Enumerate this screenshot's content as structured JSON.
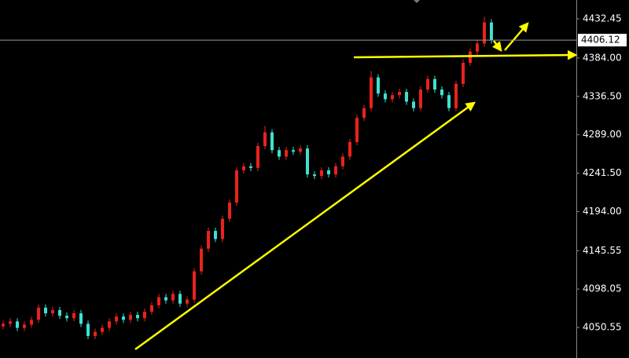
{
  "chart_data": {
    "type": "candlestick",
    "open": [
      4052,
      4055,
      4058,
      4050,
      4054,
      4060,
      4075,
      4068,
      4072,
      4065,
      4062,
      4068,
      4055,
      4040,
      4045,
      4050,
      4058,
      4064,
      4060,
      4066,
      4062,
      4070,
      4078,
      4088,
      4084,
      4092,
      4080,
      4085,
      4120,
      4148,
      4170,
      4160,
      4185,
      4205,
      4245,
      4250,
      4248,
      4275,
      4292,
      4270,
      4262,
      4270,
      4268,
      4272,
      4240,
      4238,
      4245,
      4240,
      4250,
      4262,
      4280,
      4310,
      4322,
      4360,
      4340,
      4333,
      4338,
      4342,
      4330,
      4322,
      4345,
      4358,
      4345,
      4338,
      4322,
      4352,
      4378,
      4392,
      4402,
      4428
    ],
    "high": [
      4059,
      4062,
      4062,
      4058,
      4064,
      4079,
      4079,
      4076,
      4076,
      4069,
      4072,
      4072,
      4059,
      4049,
      4054,
      4062,
      4068,
      4068,
      4070,
      4070,
      4074,
      4082,
      4092,
      4092,
      4096,
      4096,
      4089,
      4124,
      4152,
      4174,
      4174,
      4189,
      4209,
      4249,
      4254,
      4254,
      4279,
      4300,
      4296,
      4274,
      4274,
      4274,
      4276,
      4276,
      4244,
      4249,
      4249,
      4254,
      4266,
      4284,
      4314,
      4326,
      4368,
      4364,
      4344,
      4342,
      4346,
      4346,
      4334,
      4349,
      4362,
      4362,
      4349,
      4342,
      4356,
      4382,
      4396,
      4406,
      4435,
      4432
    ],
    "low": [
      4048,
      4051,
      4046,
      4046,
      4050,
      4056,
      4064,
      4064,
      4061,
      4058,
      4058,
      4051,
      4036,
      4036,
      4041,
      4046,
      4054,
      4056,
      4056,
      4058,
      4058,
      4066,
      4074,
      4080,
      4080,
      4076,
      4076,
      4081,
      4116,
      4144,
      4156,
      4156,
      4181,
      4201,
      4241,
      4244,
      4244,
      4271,
      4266,
      4258,
      4258,
      4264,
      4264,
      4236,
      4234,
      4234,
      4236,
      4236,
      4246,
      4258,
      4276,
      4306,
      4318,
      4336,
      4329,
      4329,
      4334,
      4326,
      4318,
      4318,
      4341,
      4341,
      4334,
      4318,
      4318,
      4348,
      4374,
      4388,
      4398,
      4402
    ],
    "close": [
      4055,
      4058,
      4050,
      4054,
      4060,
      4075,
      4068,
      4072,
      4065,
      4062,
      4068,
      4055,
      4040,
      4045,
      4050,
      4058,
      4064,
      4060,
      4066,
      4062,
      4070,
      4078,
      4088,
      4084,
      4092,
      4080,
      4085,
      4120,
      4148,
      4170,
      4160,
      4185,
      4205,
      4245,
      4250,
      4248,
      4275,
      4292,
      4270,
      4262,
      4270,
      4268,
      4272,
      4240,
      4238,
      4245,
      4240,
      4250,
      4262,
      4280,
      4310,
      4322,
      4360,
      4340,
      4333,
      4338,
      4342,
      4330,
      4322,
      4345,
      4358,
      4345,
      4338,
      4322,
      4352,
      4378,
      4392,
      4402,
      4428,
      4406.12
    ],
    "up_color": "#e8231c",
    "down_color": "#3fe0d0",
    "current_price": 4406.12,
    "ylim": [
      4012.7,
      4455.8
    ],
    "yticks": [
      {
        "value": 4432.45,
        "label": "4432.45"
      },
      {
        "value": 4384,
        "label": "4384.00"
      },
      {
        "value": 4336.5,
        "label": "4336.50"
      },
      {
        "value": 4289,
        "label": "4289.00"
      },
      {
        "value": 4241.5,
        "label": "4241.50"
      },
      {
        "value": 4194,
        "label": "4194.00"
      },
      {
        "value": 4145.55,
        "label": "4145.55"
      },
      {
        "value": 4098.05,
        "label": "4098.05"
      },
      {
        "value": 4050.55,
        "label": "4050.55"
      }
    ]
  }
}
